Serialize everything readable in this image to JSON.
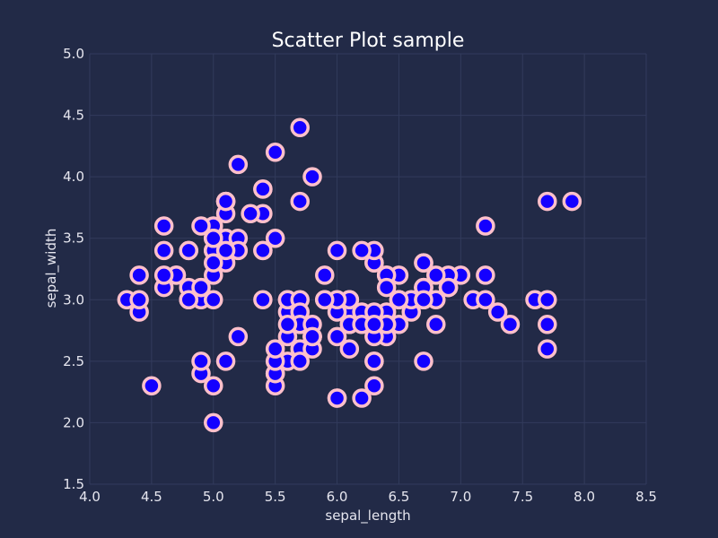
{
  "colors": {
    "background": "#222a47",
    "grid": "#323b5c",
    "marker_fill": "#1400ff",
    "marker_edge": "#ffc0cb",
    "text": "#e6e6ef"
  },
  "chart_data": {
    "type": "scatter",
    "title": "Scatter Plot sample",
    "xlabel": "sepal_length",
    "ylabel": "sepal_width",
    "xlim": [
      4.0,
      8.5
    ],
    "ylim": [
      1.5,
      5.0
    ],
    "xticks": [
      "4.0",
      "4.5",
      "5.0",
      "5.5",
      "6.0",
      "6.5",
      "7.0",
      "7.5",
      "8.0",
      "8.5"
    ],
    "yticks": [
      "1.5",
      "2.0",
      "2.5",
      "3.0",
      "3.5",
      "4.0",
      "4.5",
      "5.0"
    ],
    "grid": true,
    "points": [
      [
        5.1,
        3.5
      ],
      [
        4.9,
        3.0
      ],
      [
        4.7,
        3.2
      ],
      [
        4.6,
        3.1
      ],
      [
        5.0,
        3.6
      ],
      [
        5.4,
        3.9
      ],
      [
        4.6,
        3.4
      ],
      [
        5.0,
        3.4
      ],
      [
        4.4,
        2.9
      ],
      [
        4.9,
        3.1
      ],
      [
        5.4,
        3.7
      ],
      [
        4.8,
        3.4
      ],
      [
        4.8,
        3.0
      ],
      [
        4.3,
        3.0
      ],
      [
        5.8,
        4.0
      ],
      [
        5.7,
        4.4
      ],
      [
        5.4,
        3.9
      ],
      [
        5.1,
        3.5
      ],
      [
        5.7,
        3.8
      ],
      [
        5.1,
        3.8
      ],
      [
        5.4,
        3.4
      ],
      [
        5.1,
        3.7
      ],
      [
        4.6,
        3.6
      ],
      [
        5.1,
        3.3
      ],
      [
        4.8,
        3.4
      ],
      [
        5.0,
        3.0
      ],
      [
        5.0,
        3.4
      ],
      [
        5.2,
        3.5
      ],
      [
        5.2,
        3.4
      ],
      [
        4.7,
        3.2
      ],
      [
        4.8,
        3.1
      ],
      [
        5.4,
        3.4
      ],
      [
        5.2,
        4.1
      ],
      [
        5.5,
        4.2
      ],
      [
        4.9,
        3.1
      ],
      [
        5.0,
        3.2
      ],
      [
        5.5,
        3.5
      ],
      [
        4.9,
        3.6
      ],
      [
        4.4,
        3.0
      ],
      [
        5.1,
        3.4
      ],
      [
        5.0,
        3.5
      ],
      [
        4.5,
        2.3
      ],
      [
        4.4,
        3.2
      ],
      [
        5.0,
        3.5
      ],
      [
        5.1,
        3.8
      ],
      [
        4.8,
        3.0
      ],
      [
        5.1,
        3.8
      ],
      [
        4.6,
        3.2
      ],
      [
        5.3,
        3.7
      ],
      [
        5.0,
        3.3
      ],
      [
        7.0,
        3.2
      ],
      [
        6.4,
        3.2
      ],
      [
        6.9,
        3.1
      ],
      [
        5.5,
        2.3
      ],
      [
        6.5,
        2.8
      ],
      [
        5.7,
        2.8
      ],
      [
        6.3,
        3.3
      ],
      [
        4.9,
        2.4
      ],
      [
        6.6,
        2.9
      ],
      [
        5.2,
        2.7
      ],
      [
        5.0,
        2.0
      ],
      [
        5.9,
        3.0
      ],
      [
        6.0,
        2.2
      ],
      [
        6.1,
        2.9
      ],
      [
        5.6,
        2.9
      ],
      [
        6.7,
        3.1
      ],
      [
        5.6,
        3.0
      ],
      [
        5.8,
        2.7
      ],
      [
        6.2,
        2.2
      ],
      [
        5.6,
        2.5
      ],
      [
        5.9,
        3.2
      ],
      [
        6.1,
        2.8
      ],
      [
        6.3,
        2.5
      ],
      [
        6.1,
        2.8
      ],
      [
        6.4,
        2.9
      ],
      [
        6.6,
        3.0
      ],
      [
        6.8,
        2.8
      ],
      [
        6.7,
        3.0
      ],
      [
        6.0,
        2.9
      ],
      [
        5.7,
        2.6
      ],
      [
        5.5,
        2.4
      ],
      [
        5.5,
        2.4
      ],
      [
        5.8,
        2.7
      ],
      [
        6.0,
        2.7
      ],
      [
        5.4,
        3.0
      ],
      [
        6.0,
        3.4
      ],
      [
        6.7,
        3.1
      ],
      [
        6.3,
        2.3
      ],
      [
        5.6,
        3.0
      ],
      [
        5.5,
        2.5
      ],
      [
        5.5,
        2.6
      ],
      [
        6.1,
        3.0
      ],
      [
        5.8,
        2.6
      ],
      [
        5.0,
        2.3
      ],
      [
        5.6,
        2.7
      ],
      [
        5.7,
        3.0
      ],
      [
        5.7,
        2.9
      ],
      [
        6.2,
        2.9
      ],
      [
        5.1,
        2.5
      ],
      [
        5.7,
        2.8
      ],
      [
        6.3,
        3.3
      ],
      [
        5.8,
        2.7
      ],
      [
        7.1,
        3.0
      ],
      [
        6.3,
        2.9
      ],
      [
        6.5,
        3.0
      ],
      [
        7.6,
        3.0
      ],
      [
        4.9,
        2.5
      ],
      [
        7.3,
        2.9
      ],
      [
        6.7,
        2.5
      ],
      [
        7.2,
        3.6
      ],
      [
        6.5,
        3.2
      ],
      [
        6.4,
        2.7
      ],
      [
        6.8,
        3.0
      ],
      [
        5.7,
        2.5
      ],
      [
        5.8,
        2.8
      ],
      [
        6.4,
        3.2
      ],
      [
        6.5,
        3.0
      ],
      [
        7.7,
        3.8
      ],
      [
        7.7,
        2.6
      ],
      [
        6.0,
        2.2
      ],
      [
        6.9,
        3.2
      ],
      [
        5.6,
        2.8
      ],
      [
        7.7,
        2.8
      ],
      [
        6.3,
        2.7
      ],
      [
        6.7,
        3.3
      ],
      [
        7.2,
        3.2
      ],
      [
        6.2,
        2.8
      ],
      [
        6.1,
        3.0
      ],
      [
        6.4,
        2.8
      ],
      [
        7.2,
        3.0
      ],
      [
        7.4,
        2.8
      ],
      [
        7.9,
        3.8
      ],
      [
        6.4,
        2.8
      ],
      [
        6.3,
        2.8
      ],
      [
        6.1,
        2.6
      ],
      [
        7.7,
        3.0
      ],
      [
        6.3,
        3.4
      ],
      [
        6.4,
        3.1
      ],
      [
        6.0,
        3.0
      ],
      [
        6.9,
        3.1
      ],
      [
        6.7,
        3.1
      ],
      [
        6.9,
        3.1
      ],
      [
        5.8,
        2.7
      ],
      [
        6.8,
        3.2
      ],
      [
        6.7,
        3.3
      ],
      [
        6.7,
        3.0
      ],
      [
        6.3,
        2.5
      ],
      [
        6.5,
        3.0
      ],
      [
        6.2,
        3.4
      ],
      [
        5.9,
        3.0
      ]
    ]
  }
}
